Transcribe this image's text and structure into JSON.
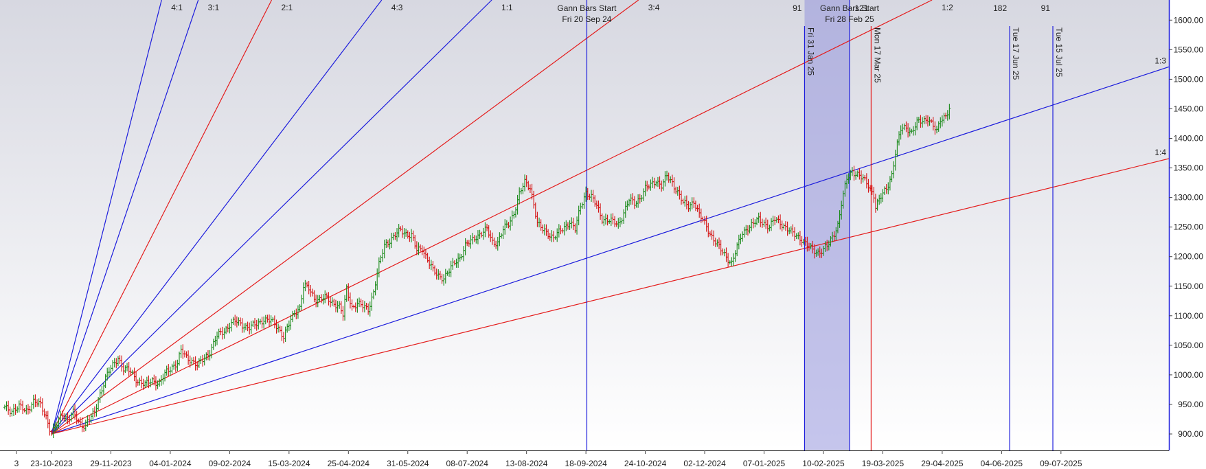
{
  "chart_data": {
    "type": "line",
    "title": "",
    "xlabel": "",
    "ylabel": "",
    "ylim": [
      873,
      1633
    ],
    "y_ticks": [
      900,
      950,
      1000,
      1050,
      1100,
      1150,
      1200,
      1250,
      1300,
      1350,
      1400,
      1450,
      1500,
      1550,
      1600
    ],
    "y_tick_labels": [
      "900.00",
      "950.00",
      "1000.00",
      "1050.00",
      "1100.00",
      "1150.00",
      "1200.00",
      "1250.00",
      "1300.00",
      "1350.00",
      "1400.00",
      "1450.00",
      "1500.00",
      "1550.00",
      "1600.00"
    ],
    "x_tick_labels": [
      "3",
      "23-10-2023",
      "29-11-2023",
      "04-01-2024",
      "09-02-2024",
      "15-03-2024",
      "25-04-2024",
      "31-05-2024",
      "08-07-2024",
      "13-08-2024",
      "18-09-2024",
      "24-10-2024",
      "02-12-2024",
      "07-01-2025",
      "10-02-2025",
      "19-03-2025",
      "29-04-2025",
      "04-06-2025",
      "09-07-2025"
    ],
    "x_tick_positions_data_units": [
      -19.5,
      0,
      33,
      66,
      99,
      132,
      165,
      198,
      231,
      264,
      297,
      330,
      363,
      396,
      429,
      462,
      495,
      528,
      561
    ],
    "x_units": "trading bars from the Gann pivot (23-10-2023 = 0)",
    "gann_origin": {
      "date": "23-10-2023",
      "price": 900
    },
    "gann_fan": [
      {
        "name": "4:1",
        "slope": 12.0,
        "color": "#1c1cdc"
      },
      {
        "name": "3:1",
        "slope": 9.0,
        "color": "#1c1cdc"
      },
      {
        "name": "2:1",
        "slope": 6.0,
        "color": "#e41c1c"
      },
      {
        "name": "4:3",
        "slope": 4.0,
        "color": "#1c1cdc"
      },
      {
        "name": "1:1",
        "slope": 3.0,
        "color": "#1c1cdc"
      },
      {
        "name": "3:4",
        "slope": 2.25,
        "color": "#e41c1c"
      },
      {
        "name": "1:2",
        "slope": 1.5,
        "color": "#e41c1c"
      },
      {
        "name": "1:3",
        "slope": 1.0,
        "color": "#1c1cdc"
      },
      {
        "name": "1:4",
        "slope": 0.75,
        "color": "#e41c1c"
      }
    ],
    "time_markers": [
      {
        "x": 297.5,
        "label_top": "Gann Bars Start",
        "label_sub": "Fri 20 Sep 24",
        "color": "#1c1cdc"
      },
      {
        "x": 418.5,
        "label_top": "91",
        "label_sub": "Fri 31 Jan 25",
        "color": "#1c1cdc"
      },
      {
        "x": 443.5,
        "label_top": "Gann Bars Start",
        "label_sub": "Fri 28 Feb 25",
        "color": "#1c1cdc"
      },
      {
        "x": 455.5,
        "label_top": "121",
        "label_sub": "Mon 17 Mar 25",
        "color": "#e41c1c"
      },
      {
        "x": 532.5,
        "label_top": "182",
        "label_sub": "Tue 17 Jun 25",
        "color": "#1c1cdc"
      },
      {
        "x": 556.5,
        "label_top": "91",
        "label_sub": "Tue 15 Jul 25",
        "color": "#1c1cdc"
      }
    ],
    "shaded_range": {
      "from": 418.5,
      "to": 443.5,
      "color": "#9696dc"
    },
    "price_anchors": [
      [
        -26,
        945
      ],
      [
        -22,
        940
      ],
      [
        -18,
        945
      ],
      [
        -14,
        940
      ],
      [
        -10,
        955
      ],
      [
        -6,
        948
      ],
      [
        -3,
        930
      ],
      [
        0,
        900
      ],
      [
        3,
        915
      ],
      [
        6,
        935
      ],
      [
        9,
        925
      ],
      [
        12,
        935
      ],
      [
        15,
        920
      ],
      [
        18,
        915
      ],
      [
        21,
        925
      ],
      [
        24,
        935
      ],
      [
        26,
        960
      ],
      [
        30,
        995
      ],
      [
        34,
        1015
      ],
      [
        37,
        1030
      ],
      [
        40,
        1010
      ],
      [
        44,
        1005
      ],
      [
        48,
        990
      ],
      [
        52,
        982
      ],
      [
        56,
        992
      ],
      [
        60,
        985
      ],
      [
        64,
        1005
      ],
      [
        67,
        1015
      ],
      [
        70,
        1020
      ],
      [
        72,
        1040
      ],
      [
        75,
        1030
      ],
      [
        78,
        1025
      ],
      [
        81,
        1015
      ],
      [
        84,
        1025
      ],
      [
        88,
        1040
      ],
      [
        92,
        1065
      ],
      [
        96,
        1075
      ],
      [
        99,
        1085
      ],
      [
        102,
        1090
      ],
      [
        106,
        1085
      ],
      [
        110,
        1080
      ],
      [
        114,
        1085
      ],
      [
        118,
        1095
      ],
      [
        122,
        1090
      ],
      [
        126,
        1080
      ],
      [
        129,
        1065
      ],
      [
        132,
        1085
      ],
      [
        135,
        1105
      ],
      [
        138,
        1115
      ],
      [
        140,
        1150
      ],
      [
        143,
        1145
      ],
      [
        146,
        1130
      ],
      [
        149,
        1128
      ],
      [
        152,
        1130
      ],
      [
        155,
        1125
      ],
      [
        158,
        1120
      ],
      [
        160,
        1115
      ],
      [
        162,
        1100
      ],
      [
        164,
        1145
      ],
      [
        167,
        1115
      ],
      [
        170,
        1120
      ],
      [
        173,
        1115
      ],
      [
        176,
        1112
      ],
      [
        179,
        1140
      ],
      [
        182,
        1185
      ],
      [
        185,
        1220
      ],
      [
        188,
        1228
      ],
      [
        191,
        1235
      ],
      [
        194,
        1245
      ],
      [
        197,
        1240
      ],
      [
        200,
        1235
      ],
      [
        203,
        1210
      ],
      [
        206,
        1215
      ],
      [
        209,
        1195
      ],
      [
        212,
        1175
      ],
      [
        215,
        1168
      ],
      [
        218,
        1165
      ],
      [
        221,
        1175
      ],
      [
        224,
        1190
      ],
      [
        227,
        1200
      ],
      [
        230,
        1218
      ],
      [
        233,
        1225
      ],
      [
        236,
        1235
      ],
      [
        239,
        1240
      ],
      [
        242,
        1245
      ],
      [
        245,
        1225
      ],
      [
        248,
        1225
      ],
      [
        251,
        1245
      ],
      [
        254,
        1255
      ],
      [
        257,
        1275
      ],
      [
        260,
        1305
      ],
      [
        263,
        1325
      ],
      [
        266,
        1318
      ],
      [
        268,
        1290
      ],
      [
        270,
        1255
      ],
      [
        273,
        1245
      ],
      [
        276,
        1240
      ],
      [
        279,
        1232
      ],
      [
        282,
        1240
      ],
      [
        285,
        1250
      ],
      [
        288,
        1260
      ],
      [
        291,
        1245
      ],
      [
        294,
        1285
      ],
      [
        297,
        1310
      ],
      [
        300,
        1300
      ],
      [
        303,
        1285
      ],
      [
        306,
        1265
      ],
      [
        309,
        1262
      ],
      [
        312,
        1258
      ],
      [
        315,
        1255
      ],
      [
        318,
        1275
      ],
      [
        321,
        1295
      ],
      [
        324,
        1290
      ],
      [
        327,
        1300
      ],
      [
        330,
        1315
      ],
      [
        333,
        1320
      ],
      [
        336,
        1330
      ],
      [
        339,
        1320
      ],
      [
        342,
        1335
      ],
      [
        345,
        1325
      ],
      [
        348,
        1310
      ],
      [
        351,
        1290
      ],
      [
        354,
        1285
      ],
      [
        357,
        1295
      ],
      [
        360,
        1270
      ],
      [
        363,
        1255
      ],
      [
        366,
        1240
      ],
      [
        369,
        1225
      ],
      [
        372,
        1210
      ],
      [
        375,
        1200
      ],
      [
        378,
        1190
      ],
      [
        381,
        1215
      ],
      [
        384,
        1240
      ],
      [
        387,
        1250
      ],
      [
        390,
        1255
      ],
      [
        393,
        1262
      ],
      [
        396,
        1258
      ],
      [
        399,
        1250
      ],
      [
        402,
        1262
      ],
      [
        405,
        1258
      ],
      [
        408,
        1250
      ],
      [
        411,
        1240
      ],
      [
        414,
        1235
      ],
      [
        417,
        1230
      ],
      [
        420,
        1218
      ],
      [
        423,
        1210
      ],
      [
        426,
        1208
      ],
      [
        429,
        1212
      ],
      [
        432,
        1220
      ],
      [
        435,
        1240
      ],
      [
        437,
        1255
      ],
      [
        439,
        1290
      ],
      [
        442,
        1330
      ],
      [
        445,
        1345
      ],
      [
        448,
        1340
      ],
      [
        451,
        1330
      ],
      [
        454,
        1320
      ],
      [
        457,
        1305
      ],
      [
        458,
        1285
      ],
      [
        461,
        1300
      ],
      [
        464,
        1315
      ],
      [
        467,
        1340
      ],
      [
        469,
        1375
      ],
      [
        472,
        1415
      ],
      [
        475,
        1420
      ],
      [
        478,
        1410
      ],
      [
        481,
        1425
      ],
      [
        484,
        1430
      ],
      [
        487,
        1435
      ],
      [
        490,
        1420
      ],
      [
        492,
        1410
      ],
      [
        494,
        1432
      ],
      [
        497,
        1440
      ],
      [
        499,
        1450
      ]
    ]
  }
}
